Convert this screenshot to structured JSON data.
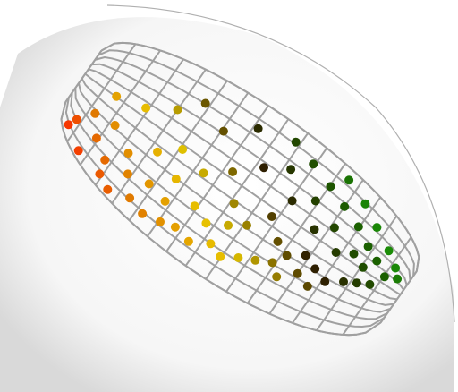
{
  "scene": {
    "background": "#ffffff",
    "shade_color": "#d9d9d9",
    "sphere_rim_color": "#b0b0b0",
    "wire_color": "#a0a0a0",
    "point_color_scale": [
      "#ff1a00",
      "#e07a00",
      "#e8c800",
      "#2e1f00",
      "#1a6400",
      "#1cff1c"
    ]
  },
  "points": [
    {
      "u": 0.04,
      "v": 0.92
    },
    {
      "u": 0.1,
      "v": 0.95
    },
    {
      "u": 0.18,
      "v": 0.93
    },
    {
      "u": 0.22,
      "v": 0.96
    },
    {
      "u": 0.28,
      "v": 0.9
    },
    {
      "u": 0.33,
      "v": 0.92
    },
    {
      "u": 0.38,
      "v": 0.89
    },
    {
      "u": 0.42,
      "v": 0.86
    },
    {
      "u": 0.47,
      "v": 0.88
    },
    {
      "u": 0.05,
      "v": 0.82
    },
    {
      "u": 0.12,
      "v": 0.78
    },
    {
      "u": 0.17,
      "v": 0.84
    },
    {
      "u": 0.24,
      "v": 0.8
    },
    {
      "u": 0.3,
      "v": 0.76
    },
    {
      "u": 0.36,
      "v": 0.78
    },
    {
      "u": 0.52,
      "v": 0.82
    },
    {
      "u": 0.56,
      "v": 0.85
    },
    {
      "u": 0.6,
      "v": 0.8
    },
    {
      "u": 0.08,
      "v": 0.66
    },
    {
      "u": 0.14,
      "v": 0.62
    },
    {
      "u": 0.21,
      "v": 0.7
    },
    {
      "u": 0.27,
      "v": 0.58
    },
    {
      "u": 0.35,
      "v": 0.64
    },
    {
      "u": 0.43,
      "v": 0.7
    },
    {
      "u": 0.48,
      "v": 0.74
    },
    {
      "u": 0.53,
      "v": 0.68
    },
    {
      "u": 0.64,
      "v": 0.76
    },
    {
      "u": 0.68,
      "v": 0.72
    },
    {
      "u": 0.71,
      "v": 0.78
    },
    {
      "u": 0.75,
      "v": 0.7
    },
    {
      "u": 0.79,
      "v": 0.74
    },
    {
      "u": 0.1,
      "v": 0.45
    },
    {
      "u": 0.18,
      "v": 0.4
    },
    {
      "u": 0.25,
      "v": 0.3
    },
    {
      "u": 0.32,
      "v": 0.48
    },
    {
      "u": 0.4,
      "v": 0.52
    },
    {
      "u": 0.46,
      "v": 0.42
    },
    {
      "u": 0.51,
      "v": 0.56
    },
    {
      "u": 0.57,
      "v": 0.62
    },
    {
      "u": 0.61,
      "v": 0.5
    },
    {
      "u": 0.66,
      "v": 0.6
    },
    {
      "u": 0.7,
      "v": 0.64
    },
    {
      "u": 0.74,
      "v": 0.58
    },
    {
      "u": 0.78,
      "v": 0.62
    },
    {
      "u": 0.82,
      "v": 0.66
    },
    {
      "u": 0.86,
      "v": 0.6
    },
    {
      "u": 0.89,
      "v": 0.56
    },
    {
      "u": 0.92,
      "v": 0.52
    },
    {
      "u": 0.3,
      "v": 0.18
    },
    {
      "u": 0.38,
      "v": 0.26
    },
    {
      "u": 0.45,
      "v": 0.14
    },
    {
      "u": 0.52,
      "v": 0.3
    },
    {
      "u": 0.58,
      "v": 0.22
    },
    {
      "u": 0.63,
      "v": 0.36
    },
    {
      "u": 0.68,
      "v": 0.28
    },
    {
      "u": 0.72,
      "v": 0.42
    },
    {
      "u": 0.76,
      "v": 0.34
    },
    {
      "u": 0.8,
      "v": 0.46
    },
    {
      "u": 0.84,
      "v": 0.4
    },
    {
      "u": 0.88,
      "v": 0.44
    },
    {
      "u": 0.55,
      "v": 0.08
    },
    {
      "u": 0.62,
      "v": 0.12
    },
    {
      "u": 0.69,
      "v": 0.16
    },
    {
      "u": 0.75,
      "v": 0.2
    },
    {
      "u": 0.81,
      "v": 0.24
    },
    {
      "u": 0.86,
      "v": 0.3
    },
    {
      "u": 0.9,
      "v": 0.34
    },
    {
      "u": 0.94,
      "v": 0.4
    },
    {
      "u": 0.72,
      "v": 0.06
    },
    {
      "u": 0.79,
      "v": 0.1
    },
    {
      "u": 0.85,
      "v": 0.16
    },
    {
      "u": 0.91,
      "v": 0.22
    },
    {
      "u": 0.95,
      "v": 0.28
    },
    {
      "u": 0.97,
      "v": 0.34
    }
  ]
}
